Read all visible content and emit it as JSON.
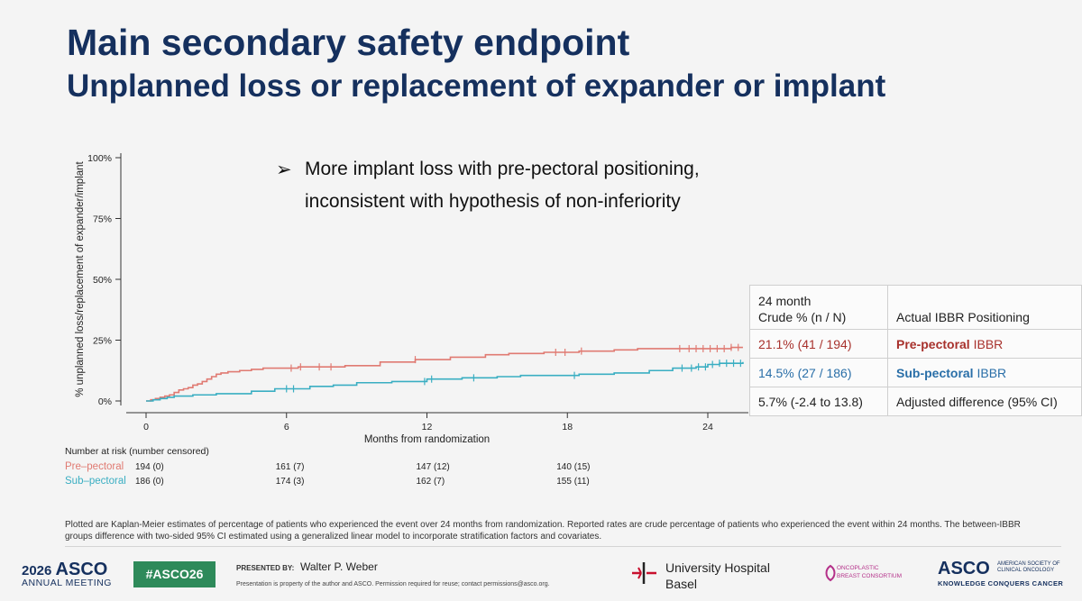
{
  "slide": {
    "title": "Main secondary safety endpoint",
    "subtitle": "Unplanned loss or replacement of expander or implant",
    "bullet_marker": "➢",
    "bullet_lines": [
      "More implant loss with pre-pectoral positioning,",
      "inconsistent with hypothesis of non-inferiority"
    ]
  },
  "chart_data": {
    "type": "line",
    "title": "",
    "xlabel": "Months from randomization",
    "ylabel": "% unplanned loss/replacement of expander/implant",
    "xlim": [
      0,
      26
    ],
    "ylim": [
      0,
      100
    ],
    "x_ticks": [
      0,
      6,
      12,
      18,
      24
    ],
    "y_ticks": [
      0,
      25,
      50,
      75,
      100
    ],
    "y_tick_labels": [
      "0%",
      "25%",
      "50%",
      "75%",
      "100%"
    ],
    "grid": false,
    "series": [
      {
        "name": "Pre-pectoral",
        "color": "#e07a72",
        "step": true,
        "points": [
          [
            0,
            0
          ],
          [
            0.2,
            0.5
          ],
          [
            0.4,
            1.0
          ],
          [
            0.6,
            1.5
          ],
          [
            0.8,
            2.0
          ],
          [
            1.0,
            2.5
          ],
          [
            1.2,
            3.5
          ],
          [
            1.4,
            4.5
          ],
          [
            1.6,
            5.0
          ],
          [
            1.8,
            5.5
          ],
          [
            2.0,
            6.5
          ],
          [
            2.2,
            7.0
          ],
          [
            2.4,
            8.0
          ],
          [
            2.6,
            9.0
          ],
          [
            2.8,
            10.0
          ],
          [
            3.0,
            11.0
          ],
          [
            3.2,
            11.5
          ],
          [
            3.5,
            12.0
          ],
          [
            4.0,
            12.5
          ],
          [
            4.5,
            13.0
          ],
          [
            5.0,
            13.5
          ],
          [
            6.5,
            14.0
          ],
          [
            8.5,
            14.5
          ],
          [
            10.0,
            16.0
          ],
          [
            11.5,
            17.0
          ],
          [
            13.0,
            18.0
          ],
          [
            14.5,
            19.0
          ],
          [
            15.5,
            19.5
          ],
          [
            17.0,
            20.0
          ],
          [
            18.5,
            20.5
          ],
          [
            20.0,
            21.0
          ],
          [
            21.0,
            21.5
          ],
          [
            24.0,
            21.5
          ],
          [
            25.0,
            22.0
          ],
          [
            25.5,
            22.0
          ]
        ],
        "censor_x": [
          6.2,
          6.6,
          7.4,
          7.9,
          11.5,
          17.5,
          17.9,
          18.6,
          22.8,
          23.2,
          23.5,
          23.8,
          24.1,
          24.4,
          24.7,
          25.0,
          25.3
        ]
      },
      {
        "name": "Sub-pectoral",
        "color": "#3aaec2",
        "step": true,
        "points": [
          [
            0,
            0
          ],
          [
            0.3,
            0.5
          ],
          [
            0.6,
            1.0
          ],
          [
            0.9,
            1.5
          ],
          [
            1.2,
            2.0
          ],
          [
            2.0,
            2.5
          ],
          [
            3.0,
            3.0
          ],
          [
            4.5,
            4.0
          ],
          [
            5.5,
            5.0
          ],
          [
            7.0,
            6.0
          ],
          [
            8.0,
            6.5
          ],
          [
            9.0,
            7.5
          ],
          [
            10.5,
            8.0
          ],
          [
            12.0,
            9.0
          ],
          [
            13.5,
            9.5
          ],
          [
            15.0,
            10.0
          ],
          [
            16.0,
            10.5
          ],
          [
            18.5,
            11.0
          ],
          [
            20.0,
            11.5
          ],
          [
            21.5,
            12.5
          ],
          [
            22.5,
            13.5
          ],
          [
            23.5,
            14.0
          ],
          [
            24.0,
            15.0
          ],
          [
            24.5,
            15.5
          ],
          [
            25.5,
            16.0
          ]
        ],
        "censor_x": [
          6.0,
          6.3,
          11.9,
          12.2,
          14.0,
          18.3,
          22.9,
          23.3,
          23.6,
          23.9,
          24.2,
          24.5,
          24.8,
          25.1,
          25.4
        ]
      }
    ],
    "number_at_risk": {
      "title": "Number at risk (number censored)",
      "rows": [
        {
          "label": "Pre–pectoral",
          "color": "#e07a72",
          "values": [
            "194 (0)",
            "161 (7)",
            "147 (12)",
            "140 (15)"
          ]
        },
        {
          "label": "Sub–pectoral",
          "color": "#3aaec2",
          "values": [
            "186 (0)",
            "174 (3)",
            "162 (7)",
            "155 (11)"
          ]
        }
      ]
    },
    "summary_table": {
      "header_col1": [
        "24 month",
        "Crude % (n / N)"
      ],
      "header_col2": "Actual IBBR Positioning",
      "rows": [
        {
          "value": "21.1%  (41 / 194)",
          "label_bold": "Pre-pectoral",
          "label_rest": " IBBR",
          "color": "#a8322d"
        },
        {
          "value": "14.5%  (27 / 186)",
          "label_bold": "Sub-pectoral",
          "label_rest": " IBBR",
          "color": "#2a6fa8"
        },
        {
          "value": "5.7% (-2.4 to 13.8)",
          "label_bold": "",
          "label_rest": "Adjusted difference (95% CI)",
          "color": "#222222"
        }
      ]
    }
  },
  "footnote": "Plotted are Kaplan-Meier estimates of percentage of patients who experienced the event over 24 months from randomization. Reported rates are crude percentage of patients who experienced the event within 24 months. The between-IBBR groups difference with two-sided 95% CI estimated using a generalized linear model to incorporate stratification factors and covariates.",
  "footer": {
    "year": "2026",
    "asco": "ASCO",
    "meeting": "ANNUAL MEETING",
    "hashtag": "#ASCO26",
    "presented_by": "PRESENTED BY:",
    "presenter": "Walter P. Weber",
    "property_note": "Presentation is property of the author and ASCO. Permission required for reuse; contact permissions@asco.org.",
    "uni_line1": "University Hospital",
    "uni_line2": "Basel",
    "onco_line1": "ONCOPLASTIC",
    "onco_line2": "BREAST CONSORTIUM",
    "asco_logo": "ASCO",
    "asco_sub1": "AMERICAN SOCIETY OF",
    "asco_sub2": "CLINICAL ONCOLOGY",
    "asco_tagline": "KNOWLEDGE CONQUERS CANCER"
  }
}
